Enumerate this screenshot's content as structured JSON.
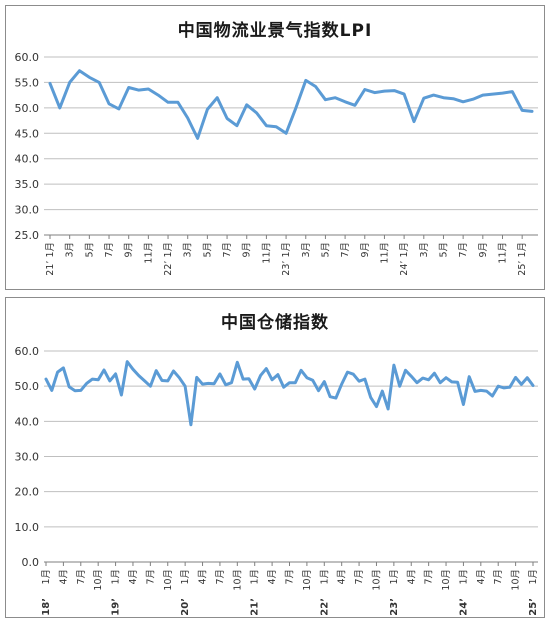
{
  "chart_data": [
    {
      "type": "line",
      "title": "中国物流业景气指数LPI",
      "ylim": [
        25.0,
        60.0
      ],
      "y_ticks": [
        "25.0",
        "30.0",
        "35.0",
        "40.0",
        "45.0",
        "50.0",
        "55.0",
        "60.0"
      ],
      "grid": true,
      "x_tick_labels": [
        "21’ 1月",
        "3月",
        "5月",
        "7月",
        "9月",
        "11月",
        "22’ 1月",
        "3月",
        "5月",
        "7月",
        "9月",
        "11月",
        "23’ 1月",
        "3月",
        "5月",
        "7月",
        "9月",
        "11月",
        "24’ 1月",
        "3月",
        "5月",
        "7月",
        "9月",
        "11月",
        "25’ 1月"
      ],
      "x_tick_index": [
        0,
        2,
        4,
        6,
        8,
        10,
        12,
        14,
        16,
        18,
        20,
        22,
        24,
        26,
        28,
        30,
        32,
        34,
        36,
        38,
        40,
        42,
        44,
        46,
        48
      ],
      "series": [
        {
          "color": "#5b9bd5",
          "values": [
            54.8,
            50.0,
            55.0,
            57.3,
            56.0,
            55.0,
            50.8,
            49.8,
            54.0,
            53.5,
            53.7,
            52.5,
            51.1,
            51.1,
            48.0,
            44.0,
            49.7,
            52.0,
            47.9,
            46.5,
            50.6,
            49.0,
            46.5,
            46.3,
            45.0,
            50.0,
            55.4,
            54.2,
            51.6,
            52.0,
            51.2,
            50.5,
            53.6,
            53.0,
            53.3,
            53.4,
            52.7,
            47.3,
            51.9,
            52.5,
            52.0,
            51.8,
            51.2,
            51.7,
            52.5,
            52.7,
            52.9,
            53.2,
            49.5,
            49.3
          ]
        }
      ]
    },
    {
      "type": "line",
      "title": "中国仓储指数",
      "ylim": [
        0.0,
        60.0
      ],
      "y_ticks": [
        "0.0",
        "10.0",
        "20.0",
        "30.0",
        "40.0",
        "50.0",
        "60.0"
      ],
      "grid": true,
      "x_tick_labels": [
        "1月",
        "4月",
        "7月",
        "10月",
        "1月",
        "4月",
        "7月",
        "10月",
        "1月",
        "4月",
        "7月",
        "10月",
        "1月",
        "4月",
        "7月",
        "10月",
        "1月",
        "4月",
        "7月",
        "10月",
        "1月",
        "4月",
        "7月",
        "10月",
        "1月",
        "4月",
        "7月",
        "10月",
        "1月"
      ],
      "x_tick_index": [
        0,
        3,
        6,
        9,
        12,
        15,
        18,
        21,
        24,
        27,
        30,
        33,
        36,
        39,
        42,
        45,
        48,
        51,
        54,
        57,
        60,
        63,
        66,
        69,
        72,
        75,
        78,
        81,
        84
      ],
      "year_labels": [
        {
          "label": "18’",
          "index": 0
        },
        {
          "label": "19’",
          "index": 12
        },
        {
          "label": "20’",
          "index": 24
        },
        {
          "label": "21’",
          "index": 36
        },
        {
          "label": "22’",
          "index": 48
        },
        {
          "label": "23’",
          "index": 60
        },
        {
          "label": "24’",
          "index": 72
        },
        {
          "label": "25’",
          "index": 84
        }
      ],
      "series": [
        {
          "color": "#5b9bd5",
          "values": [
            52.0,
            48.8,
            54.0,
            55.2,
            49.8,
            48.7,
            48.8,
            50.8,
            52.0,
            51.8,
            54.6,
            51.5,
            53.5,
            47.5,
            57.0,
            54.8,
            53.0,
            51.5,
            50.0,
            54.4,
            51.6,
            51.5,
            54.3,
            52.4,
            50.0,
            39.0,
            52.5,
            50.6,
            50.8,
            50.7,
            53.5,
            50.4,
            51.0,
            56.8,
            52.0,
            52.1,
            49.2,
            53.0,
            55.0,
            51.8,
            53.3,
            49.7,
            51.0,
            51.0,
            54.5,
            52.4,
            51.7,
            48.7,
            51.3,
            47.0,
            46.6,
            50.6,
            54.0,
            53.4,
            51.4,
            52.0,
            46.8,
            44.2,
            48.6,
            43.5,
            56.0,
            50.0,
            54.5,
            52.8,
            51.0,
            52.3,
            51.8,
            53.7,
            51.0,
            52.4,
            51.2,
            51.1,
            44.8,
            52.7,
            48.5,
            48.8,
            48.6,
            47.2,
            50.0,
            49.5,
            49.7,
            52.5,
            50.5,
            52.4,
            50.2
          ]
        }
      ]
    }
  ]
}
